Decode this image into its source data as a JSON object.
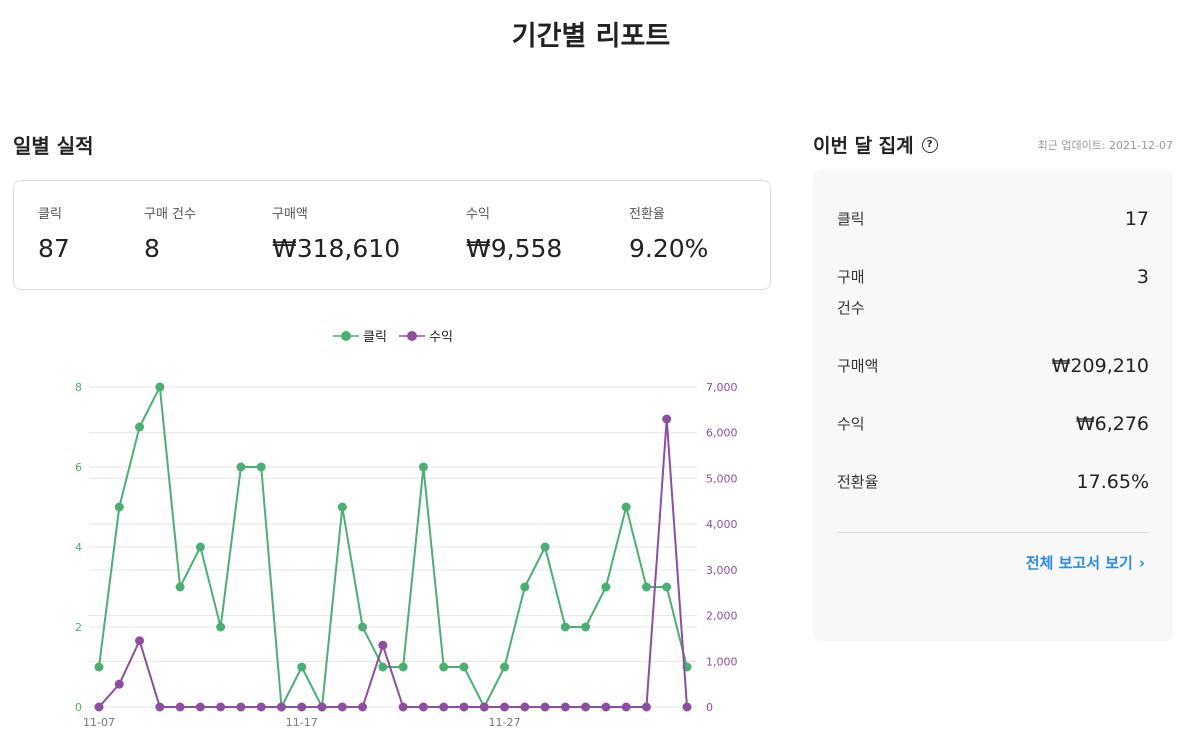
{
  "page": {
    "title": "기간별 리포트"
  },
  "daily": {
    "title": "일별 실적",
    "stats": [
      {
        "label": "클릭",
        "value": "87"
      },
      {
        "label": "구매 건수",
        "value": "8"
      },
      {
        "label": "구매액",
        "value": "₩318,610"
      },
      {
        "label": "수익",
        "value": "₩9,558"
      },
      {
        "label": "전환율",
        "value": "9.20%"
      }
    ]
  },
  "monthly": {
    "title": "이번 달 집계",
    "help_icon": "question-circle-icon",
    "updated": "최근 업데이트: 2021-12-07",
    "rows": [
      {
        "label": "클릭",
        "value": "17"
      },
      {
        "label": "구매 건수",
        "value": "3"
      },
      {
        "label": "구매액",
        "value": "₩209,210"
      },
      {
        "label": "수익",
        "value": "₩6,276"
      },
      {
        "label": "전환율",
        "value": "17.65%"
      }
    ],
    "link_label": "전체 보고서 보기",
    "link_icon": "chevron-right-icon",
    "link_color": "#2c8be0"
  },
  "chart_data": {
    "type": "line",
    "x": [
      "11-07",
      "11-08",
      "11-09",
      "11-10",
      "11-11",
      "11-12",
      "11-13",
      "11-14",
      "11-15",
      "11-16",
      "11-17",
      "11-18",
      "11-19",
      "11-20",
      "11-21",
      "11-22",
      "11-23",
      "11-24",
      "11-25",
      "11-26",
      "11-27",
      "11-28",
      "11-29",
      "11-30",
      "12-01",
      "12-02",
      "12-03",
      "12-04",
      "12-05",
      "12-06"
    ],
    "x_ticks": [
      "11-07",
      "11-17",
      "11-27"
    ],
    "series": [
      {
        "name": "클릭",
        "axis": "left",
        "color": "#4caf72",
        "values": [
          1,
          5,
          7,
          8,
          3,
          4,
          2,
          6,
          6,
          0,
          1,
          0,
          5,
          2,
          1,
          1,
          6,
          1,
          1,
          0,
          1,
          3,
          4,
          2,
          2,
          3,
          5,
          3,
          3,
          1
        ]
      },
      {
        "name": "수익",
        "axis": "right",
        "color": "#8e4ea0",
        "values": [
          0,
          500,
          1450,
          0,
          0,
          0,
          0,
          0,
          0,
          0,
          0,
          0,
          0,
          0,
          1350,
          0,
          0,
          0,
          0,
          0,
          0,
          0,
          0,
          0,
          0,
          0,
          0,
          0,
          6300,
          0
        ]
      }
    ],
    "y_left": {
      "lim": [
        0,
        8
      ],
      "ticks": [
        0,
        2,
        4,
        6,
        8
      ]
    },
    "y_right": {
      "lim": [
        0,
        7000
      ],
      "ticks": [
        "0",
        "1,000",
        "2,000",
        "3,000",
        "4,000",
        "5,000",
        "6,000",
        "7,000"
      ]
    },
    "grid": true,
    "legend": "top-center"
  }
}
